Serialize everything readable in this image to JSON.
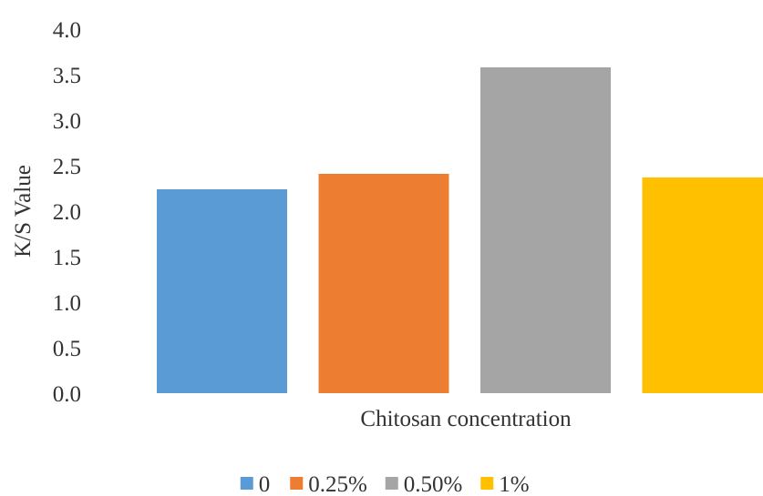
{
  "chart_data": {
    "type": "bar",
    "title": "",
    "xlabel": "Chitosan concentration",
    "ylabel": "K/S Value",
    "ylim": [
      0,
      4.0
    ],
    "yticks": [
      "0.0",
      "0.5",
      "1.0",
      "1.5",
      "2.0",
      "2.5",
      "3.0",
      "3.5",
      "4.0"
    ],
    "grid": false,
    "legend_position": "bottom",
    "categories": [
      "Chitosan concentration"
    ],
    "series": [
      {
        "name": "0",
        "values": [
          2.24
        ],
        "color": "#5B9BD5"
      },
      {
        "name": "0.25%",
        "values": [
          2.41
        ],
        "color": "#ED7D31"
      },
      {
        "name": "0.50%",
        "values": [
          3.58
        ],
        "color": "#A5A5A5"
      },
      {
        "name": "1%",
        "values": [
          2.37
        ],
        "color": "#FFC000"
      }
    ]
  }
}
